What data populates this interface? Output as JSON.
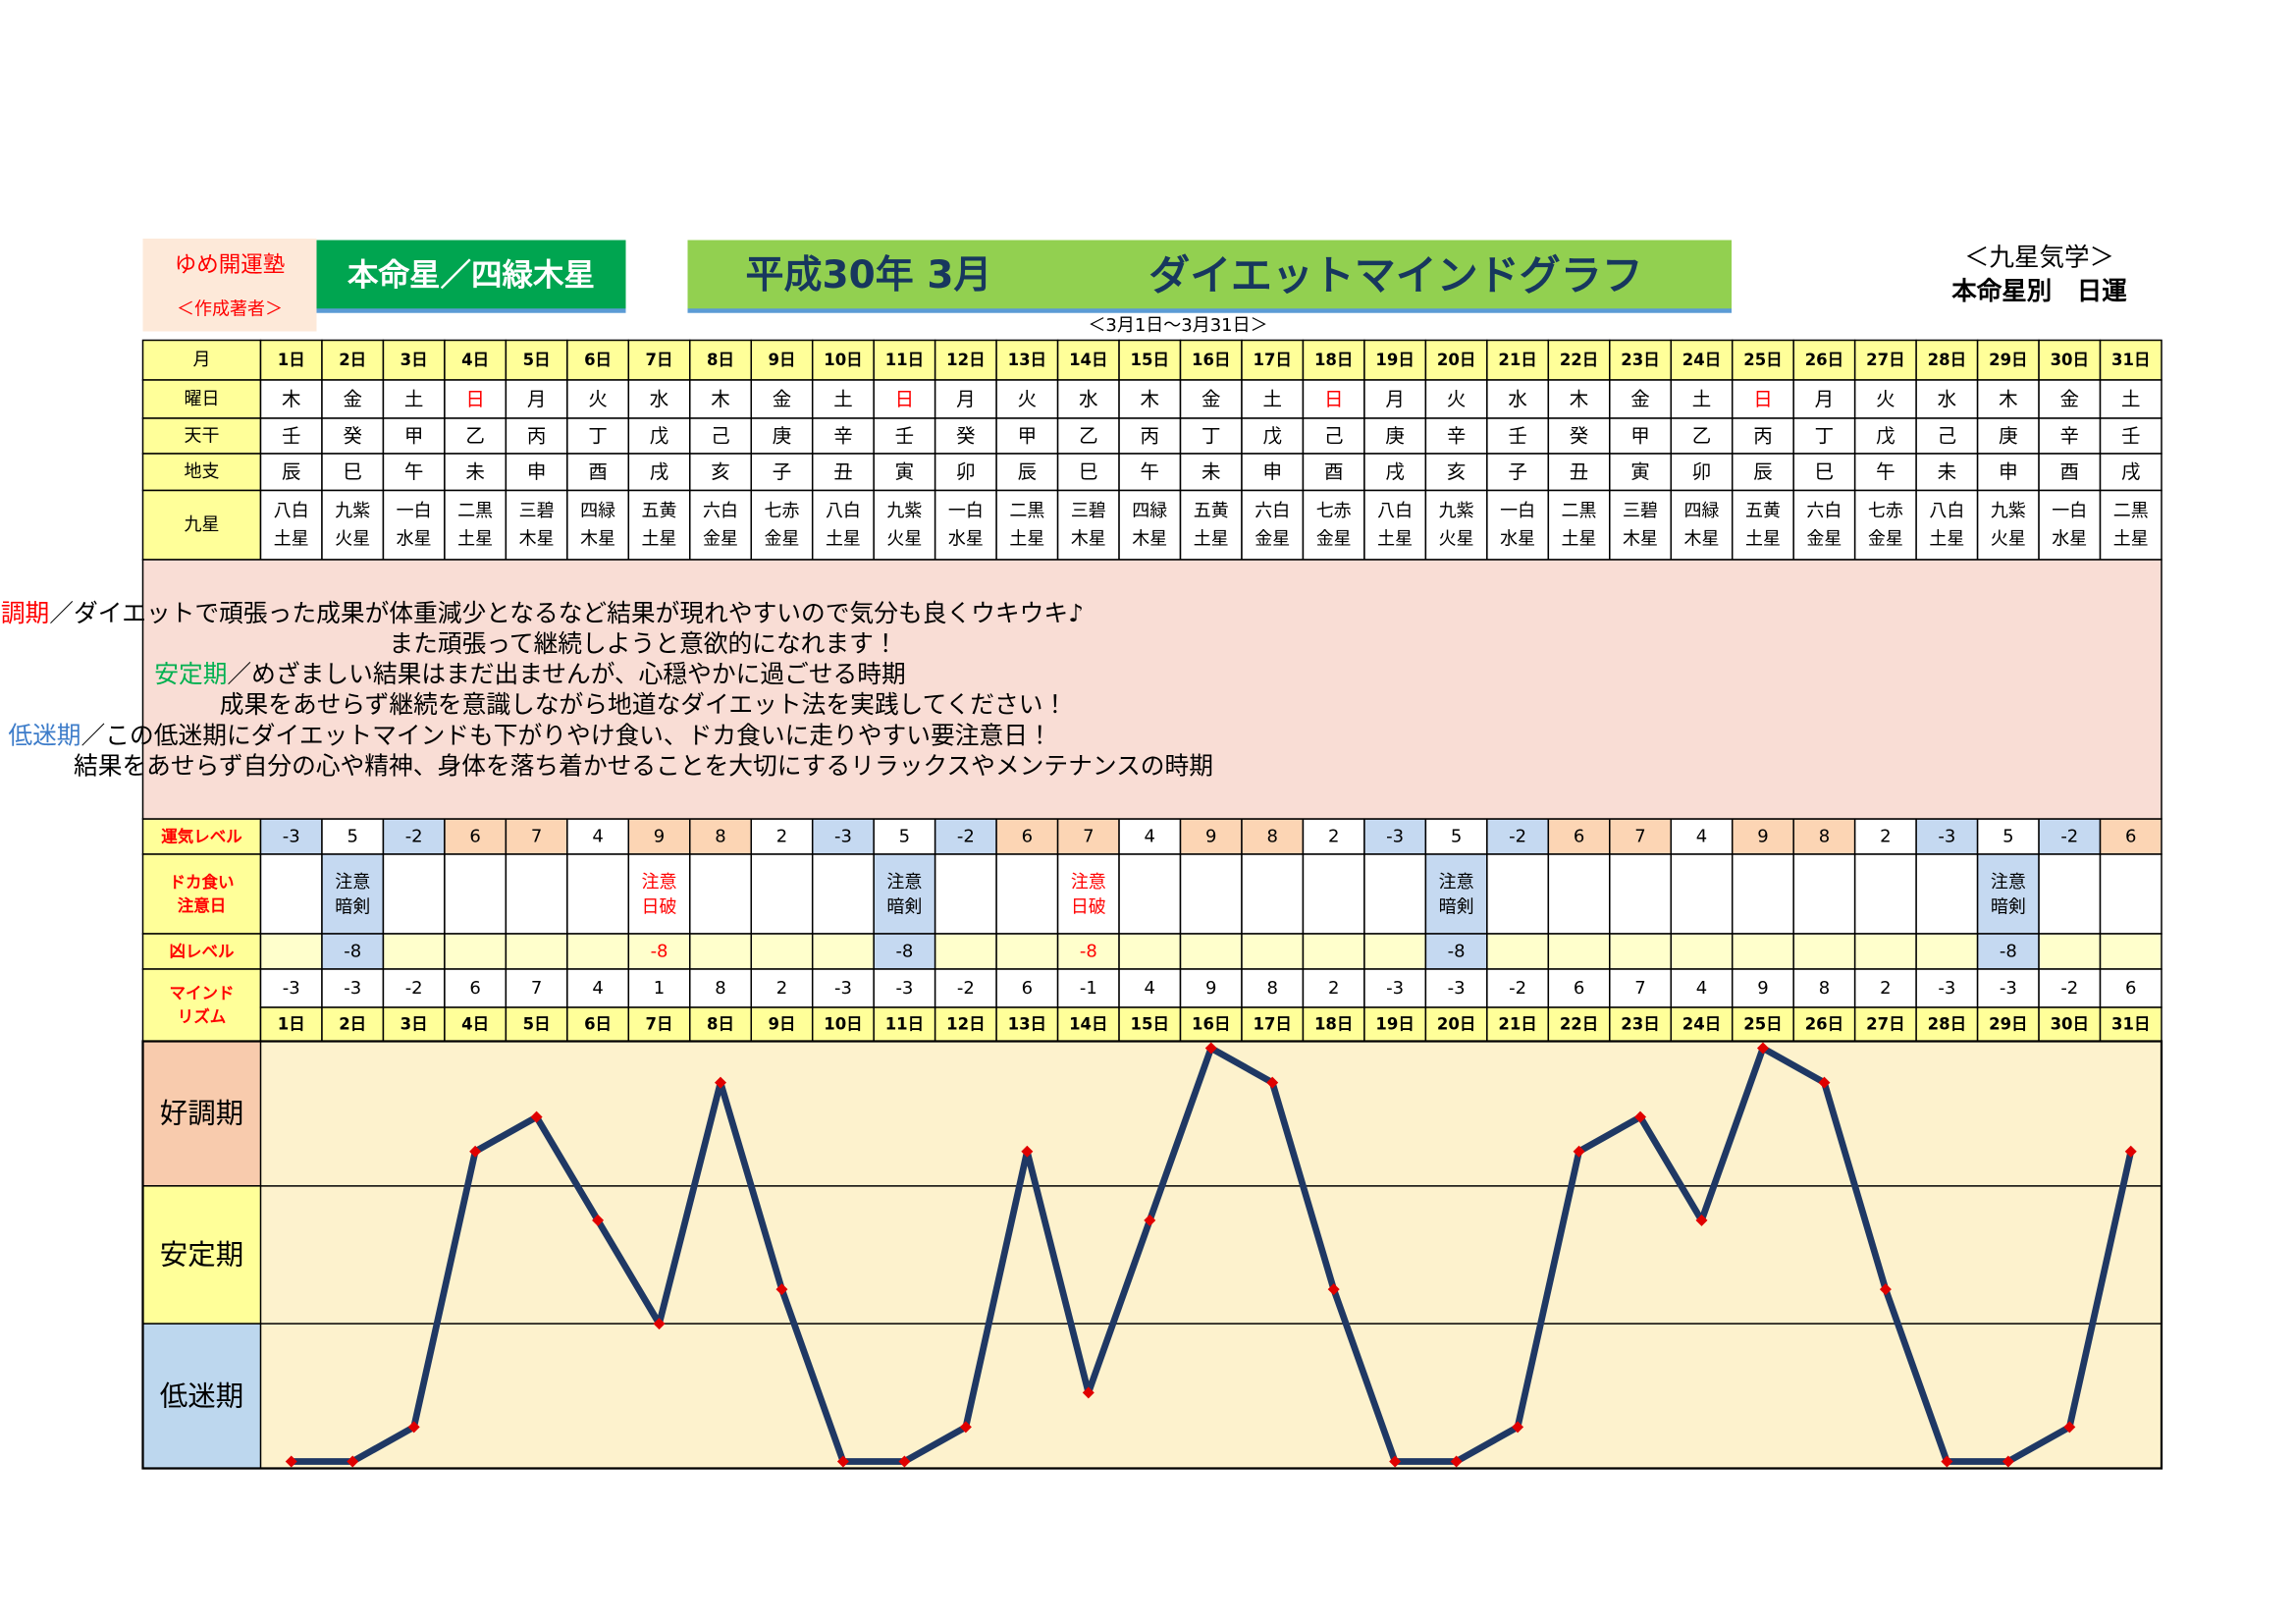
{
  "header": {
    "school": "ゆめ開運塾",
    "author": "＜作成著者＞",
    "honmei": "本命星／四緑木星",
    "title_date": "平成30年 3月",
    "title": "ダイエットマインドグラフ",
    "period": "＜3月1日～3月31日＞",
    "kyusei": "＜九星気学＞",
    "kind": "本命星別　日運"
  },
  "table": {
    "labels": {
      "month": "月",
      "weekday": "曜日",
      "kan": "天干",
      "shi": "地支",
      "star": "九星",
      "level": "運気レベル",
      "doka": [
        "ドカ食い",
        "注意日"
      ],
      "kyo": "凶レベル",
      "mind": [
        "マインド",
        "リズム"
      ]
    },
    "weekday": [
      "木",
      "金",
      "土",
      "日",
      "月",
      "火",
      "水",
      "木",
      "金",
      "土",
      "日",
      "月",
      "火",
      "水",
      "木",
      "金",
      "土",
      "日",
      "月",
      "火",
      "水",
      "木",
      "金",
      "土",
      "日",
      "月",
      "火",
      "水",
      "木",
      "金",
      "土"
    ],
    "weekday_colors": [
      "#000000",
      "#000000",
      "#000000",
      "#ff0000",
      "#000000",
      "#000000",
      "#000000",
      "#000000",
      "#000000",
      "#000000",
      "#ff0000",
      "#000000",
      "#000000",
      "#000000",
      "#000000",
      "#000000",
      "#000000",
      "#ff0000",
      "#000000",
      "#000000",
      "#000000",
      "#000000",
      "#000000",
      "#000000",
      "#ff0000",
      "#000000",
      "#000000",
      "#000000",
      "#000000",
      "#000000",
      "#000000"
    ],
    "kan": [
      "壬",
      "癸",
      "甲",
      "乙",
      "丙",
      "丁",
      "戊",
      "己",
      "庚",
      "辛",
      "壬",
      "癸",
      "甲",
      "乙",
      "丙",
      "丁",
      "戊",
      "己",
      "庚",
      "辛",
      "壬",
      "癸",
      "甲",
      "乙",
      "丙",
      "丁",
      "戊",
      "己",
      "庚",
      "辛",
      "壬"
    ],
    "shi": [
      "辰",
      "巳",
      "午",
      "未",
      "申",
      "酉",
      "戌",
      "亥",
      "子",
      "丑",
      "寅",
      "卯",
      "辰",
      "巳",
      "午",
      "未",
      "申",
      "酉",
      "戌",
      "亥",
      "子",
      "丑",
      "寅",
      "卯",
      "辰",
      "巳",
      "午",
      "未",
      "申",
      "酉",
      "戌"
    ],
    "star": [
      [
        "八白",
        "土星"
      ],
      [
        "九紫",
        "火星"
      ],
      [
        "一白",
        "水星"
      ],
      [
        "二黒",
        "土星"
      ],
      [
        "三碧",
        "木星"
      ],
      [
        "四緑",
        "木星"
      ],
      [
        "五黄",
        "土星"
      ],
      [
        "六白",
        "金星"
      ],
      [
        "七赤",
        "金星"
      ],
      [
        "八白",
        "土星"
      ],
      [
        "九紫",
        "火星"
      ],
      [
        "一白",
        "水星"
      ],
      [
        "二黒",
        "土星"
      ],
      [
        "三碧",
        "木星"
      ],
      [
        "四緑",
        "木星"
      ],
      [
        "五黄",
        "土星"
      ],
      [
        "六白",
        "金星"
      ],
      [
        "七赤",
        "金星"
      ],
      [
        "八白",
        "土星"
      ],
      [
        "九紫",
        "火星"
      ],
      [
        "一白",
        "水星"
      ],
      [
        "二黒",
        "土星"
      ],
      [
        "三碧",
        "木星"
      ],
      [
        "四緑",
        "木星"
      ],
      [
        "五黄",
        "土星"
      ],
      [
        "六白",
        "金星"
      ],
      [
        "七赤",
        "金星"
      ],
      [
        "八白",
        "土星"
      ],
      [
        "九紫",
        "火星"
      ],
      [
        "一白",
        "水星"
      ],
      [
        "二黒",
        "土星"
      ]
    ],
    "level": [
      -3,
      5,
      -2,
      6,
      7,
      4,
      9,
      8,
      2,
      -3,
      5,
      -2,
      6,
      7,
      4,
      9,
      8,
      2,
      -3,
      5,
      -2,
      6,
      7,
      4,
      9,
      8,
      2,
      -3,
      5,
      -2,
      6
    ],
    "level_fills": [
      "#c5d9f1",
      "#ffffff",
      "#c5d9f1",
      "#fcd5b4",
      "#fcd5b4",
      "#ffffff",
      "#fcd5b4",
      "#fcd5b4",
      "#ffffff",
      "#c5d9f1",
      "#ffffff",
      "#c5d9f1",
      "#fcd5b4",
      "#fcd5b4",
      "#ffffff",
      "#fcd5b4",
      "#fcd5b4",
      "#ffffff",
      "#c5d9f1",
      "#ffffff",
      "#c5d9f1",
      "#fcd5b4",
      "#fcd5b4",
      "#ffffff",
      "#fcd5b4",
      "#fcd5b4",
      "#ffffff",
      "#c5d9f1",
      "#ffffff",
      "#c5d9f1",
      "#fcd5b4"
    ],
    "doka": [
      null,
      {
        "lines": [
          "注意",
          "暗剣"
        ],
        "color": "#000000",
        "fill": "#c5d9f1"
      },
      null,
      null,
      null,
      null,
      {
        "lines": [
          "注意",
          "日破"
        ],
        "color": "#ff0000",
        "fill": "#ffffff"
      },
      null,
      null,
      null,
      {
        "lines": [
          "注意",
          "暗剣"
        ],
        "color": "#000000",
        "fill": "#c5d9f1"
      },
      null,
      null,
      {
        "lines": [
          "注意",
          "日破"
        ],
        "color": "#ff0000",
        "fill": "#ffffff"
      },
      null,
      null,
      null,
      null,
      null,
      {
        "lines": [
          "注意",
          "暗剣"
        ],
        "color": "#000000",
        "fill": "#c5d9f1"
      },
      null,
      null,
      null,
      null,
      null,
      null,
      null,
      null,
      {
        "lines": [
          "注意",
          "暗剣"
        ],
        "color": "#000000",
        "fill": "#c5d9f1"
      },
      null,
      null
    ],
    "kyo": [
      null,
      {
        "value": -8,
        "color": "#000000",
        "fill": "#c5d9f1"
      },
      null,
      null,
      null,
      null,
      {
        "value": -8,
        "color": "#ff0000",
        "fill": "#ffffcc"
      },
      null,
      null,
      null,
      {
        "value": -8,
        "color": "#000000",
        "fill": "#c5d9f1"
      },
      null,
      null,
      {
        "value": -8,
        "color": "#ff0000",
        "fill": "#ffffcc"
      },
      null,
      null,
      null,
      null,
      null,
      {
        "value": -8,
        "color": "#000000",
        "fill": "#c5d9f1"
      },
      null,
      null,
      null,
      null,
      null,
      null,
      null,
      null,
      {
        "value": -8,
        "color": "#000000",
        "fill": "#c5d9f1"
      },
      null,
      null
    ]
  },
  "notes": [
    {
      "term": "好調期",
      "color": "#ff0000",
      "text": "／ダイエットで頑張った成果が体重減少となるなど結果が現れやすいので気分も良くウキウキ♪",
      "more": "また頑張って継続しようと意欲的になれます！"
    },
    {
      "term": "安定期",
      "color": "#00b050",
      "text": "／めざましい結果はまだ出ませんが、心穏やかに過ごせる時期",
      "more": "成果をあせらず継続を意識しながら地道なダイエット法を実践してください！"
    },
    {
      "term": "低迷期",
      "color": "#3d7cc9",
      "text": "／この低迷期にダイエットマインドも下がりやけ食い、ドカ食いに走りやすい要注意日！",
      "more": "結果をあせらず自分の心や精神、身体を落ち着かせることを大切にするリラックスやメンテナンスの時期"
    }
  ],
  "chart_data": {
    "type": "line",
    "categories": [
      "1日",
      "2日",
      "3日",
      "4日",
      "5日",
      "6日",
      "7日",
      "8日",
      "9日",
      "10日",
      "11日",
      "12日",
      "13日",
      "14日",
      "15日",
      "16日",
      "17日",
      "18日",
      "19日",
      "20日",
      "21日",
      "22日",
      "23日",
      "24日",
      "25日",
      "26日",
      "27日",
      "28日",
      "29日",
      "30日",
      "31日"
    ],
    "values": [
      -3,
      -3,
      -2,
      6,
      7,
      4,
      1,
      8,
      2,
      -3,
      -3,
      -2,
      6,
      -1,
      4,
      9,
      8,
      2,
      -3,
      -3,
      -2,
      6,
      7,
      4,
      9,
      8,
      2,
      -3,
      -3,
      -2,
      6
    ],
    "ylim": [
      -3.2,
      9.2
    ],
    "yticks": [
      1,
      5
    ],
    "grid": true,
    "bands": [
      {
        "label": "好調期",
        "color": "#f8cbad"
      },
      {
        "label": "安定期",
        "color": "#ffff99"
      },
      {
        "label": "低迷期",
        "color": "#bdd7ee"
      }
    ],
    "color": "#1f3864",
    "marker_color": "#e00000"
  }
}
